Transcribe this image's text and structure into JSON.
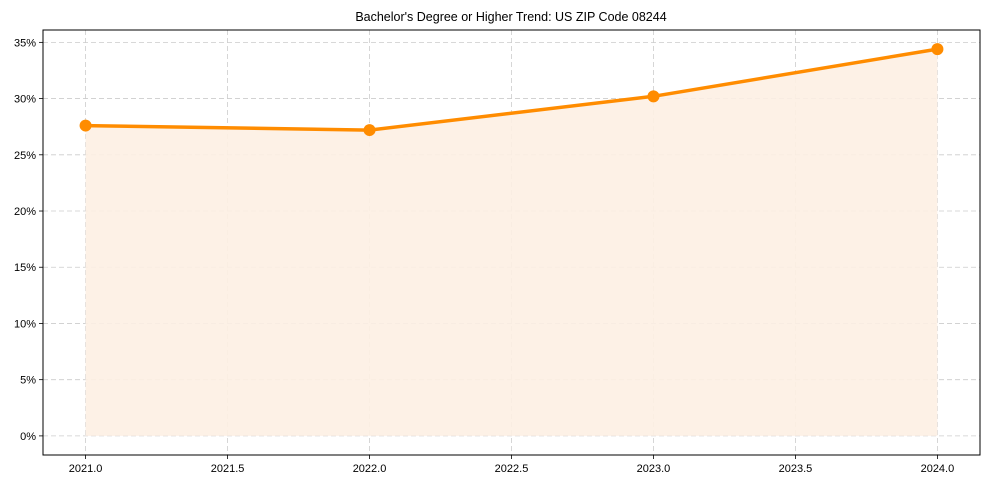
{
  "chart_data": {
    "type": "line",
    "title": "Bachelor's Degree or Higher Trend: US ZIP Code 08244",
    "xlabel": "",
    "ylabel": "",
    "x": [
      2021,
      2022,
      2023,
      2024
    ],
    "series": [
      {
        "name": "Bachelor's Degree or Higher",
        "values": [
          27.6,
          27.2,
          30.2,
          34.4
        ],
        "color": "#ff8c00",
        "fill": "#fdf0e3",
        "marker": "circle"
      }
    ],
    "xlim": [
      2020.85,
      2024.15
    ],
    "ylim": [
      -1.7,
      36.1
    ],
    "xticks": [
      "2021.0",
      "2021.5",
      "2022.0",
      "2022.5",
      "2023.0",
      "2023.5",
      "2024.0"
    ],
    "yticks": [
      "0%",
      "5%",
      "10%",
      "15%",
      "20%",
      "25%",
      "30%",
      "35%"
    ],
    "grid": true,
    "legend": null
  }
}
